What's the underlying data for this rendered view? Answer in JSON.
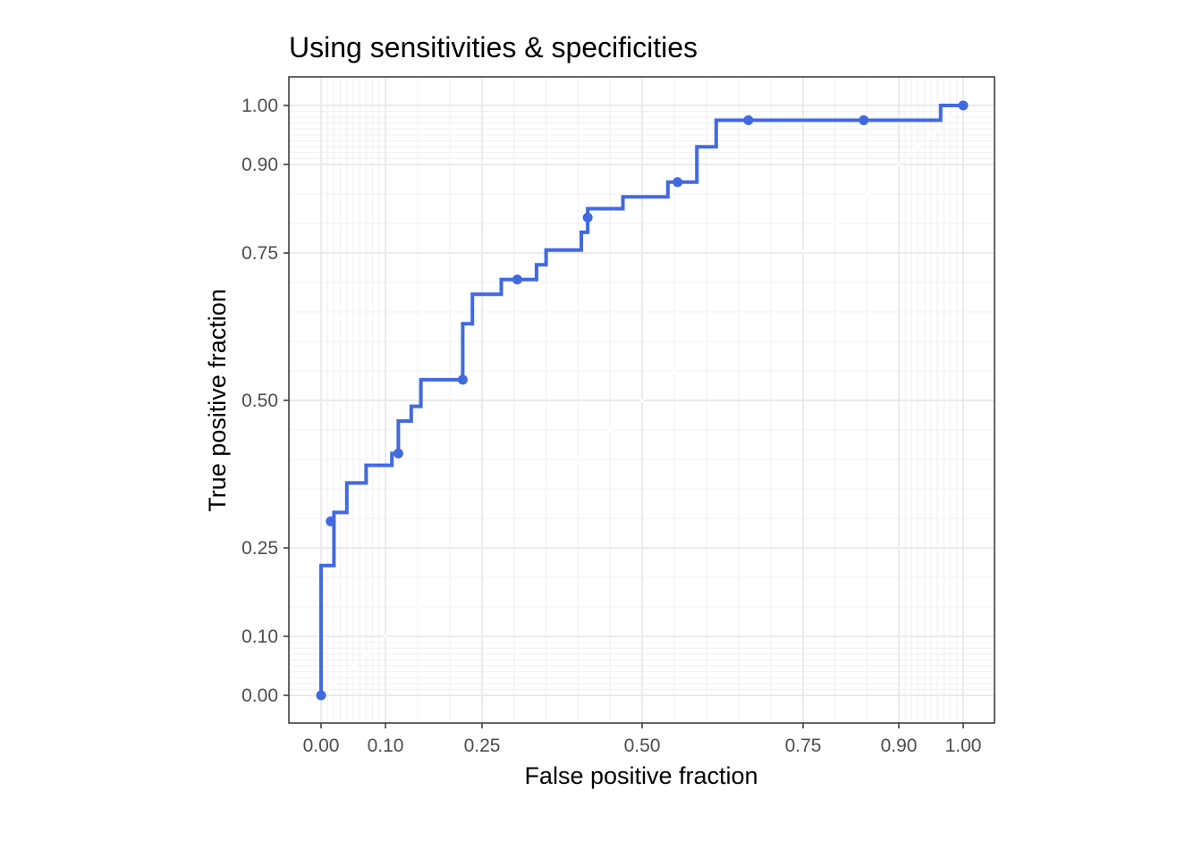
{
  "chart_data": {
    "type": "line",
    "title": "Using sensitivities & specificities",
    "xlabel": "False positive fraction",
    "ylabel": "True positive fraction",
    "xlim": [
      0,
      1
    ],
    "ylim": [
      0,
      1
    ],
    "scale": "probit-like (tick positions 0.00, 0.10, 0.25, 0.50, 0.75, 0.90, 1.00)",
    "xticks": [
      {
        "v": 0.0,
        "label": "0.00"
      },
      {
        "v": 0.1,
        "label": "0.10"
      },
      {
        "v": 0.25,
        "label": "0.25"
      },
      {
        "v": 0.5,
        "label": "0.50"
      },
      {
        "v": 0.75,
        "label": "0.75"
      },
      {
        "v": 0.9,
        "label": "0.90"
      },
      {
        "v": 1.0,
        "label": "1.00"
      }
    ],
    "yticks": [
      {
        "v": 0.0,
        "label": "0.00"
      },
      {
        "v": 0.1,
        "label": "0.10"
      },
      {
        "v": 0.25,
        "label": "0.25"
      },
      {
        "v": 0.5,
        "label": "0.50"
      },
      {
        "v": 0.75,
        "label": "0.75"
      },
      {
        "v": 0.9,
        "label": "0.90"
      },
      {
        "v": 1.0,
        "label": "1.00"
      }
    ],
    "grid": true,
    "line_color": "#4169E1",
    "series": [
      {
        "step": [
          [
            0.0,
            0.0
          ],
          [
            0.0,
            0.22
          ],
          [
            0.02,
            0.22
          ],
          [
            0.02,
            0.31
          ],
          [
            0.04,
            0.31
          ],
          [
            0.04,
            0.36
          ],
          [
            0.07,
            0.36
          ],
          [
            0.07,
            0.39
          ],
          [
            0.11,
            0.39
          ],
          [
            0.11,
            0.41
          ],
          [
            0.12,
            0.41
          ],
          [
            0.12,
            0.465
          ],
          [
            0.14,
            0.465
          ],
          [
            0.14,
            0.49
          ],
          [
            0.155,
            0.49
          ],
          [
            0.155,
            0.535
          ],
          [
            0.22,
            0.535
          ],
          [
            0.22,
            0.63
          ],
          [
            0.235,
            0.63
          ],
          [
            0.235,
            0.68
          ],
          [
            0.28,
            0.68
          ],
          [
            0.28,
            0.705
          ],
          [
            0.335,
            0.705
          ],
          [
            0.335,
            0.73
          ],
          [
            0.35,
            0.73
          ],
          [
            0.35,
            0.755
          ],
          [
            0.405,
            0.755
          ],
          [
            0.405,
            0.785
          ],
          [
            0.415,
            0.785
          ],
          [
            0.415,
            0.825
          ],
          [
            0.47,
            0.825
          ],
          [
            0.47,
            0.845
          ],
          [
            0.54,
            0.845
          ],
          [
            0.54,
            0.87
          ],
          [
            0.585,
            0.87
          ],
          [
            0.585,
            0.93
          ],
          [
            0.615,
            0.93
          ],
          [
            0.615,
            0.975
          ],
          [
            0.965,
            0.975
          ],
          [
            0.965,
            1.0
          ],
          [
            1.0,
            1.0
          ]
        ],
        "points": [
          [
            0.0,
            0.0
          ],
          [
            0.015,
            0.295
          ],
          [
            0.12,
            0.41
          ],
          [
            0.22,
            0.535
          ],
          [
            0.305,
            0.705
          ],
          [
            0.415,
            0.81
          ],
          [
            0.555,
            0.87
          ],
          [
            0.665,
            0.975
          ],
          [
            0.845,
            0.975
          ],
          [
            1.0,
            1.0
          ]
        ]
      }
    ]
  }
}
